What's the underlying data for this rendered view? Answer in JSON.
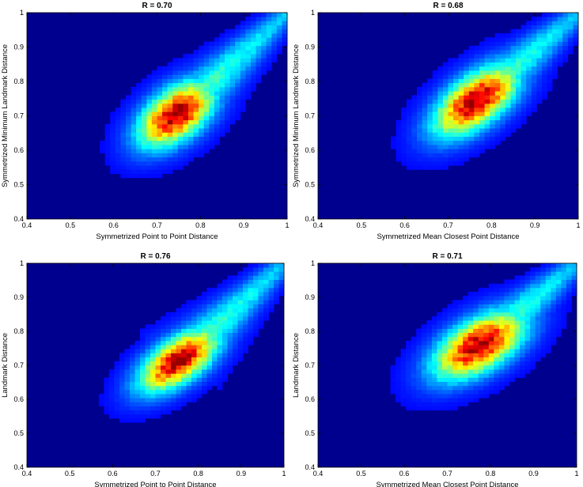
{
  "chart_data": [
    {
      "type": "heatmap",
      "title": "R = 0.70",
      "xlabel": "Symmetrized Point to Point Distance",
      "ylabel": "Symmetrized Minimum Landmark Distance",
      "xlim": [
        0.4,
        1.0
      ],
      "ylim": [
        0.4,
        1.0
      ],
      "xticks": [
        "0.4",
        "0.5",
        "0.6",
        "0.7",
        "0.8",
        "0.9",
        "1"
      ],
      "yticks": [
        "0.4",
        "0.5",
        "0.6",
        "0.7",
        "0.8",
        "0.9",
        "1"
      ],
      "colormap": "jet",
      "background_color": "#00008f",
      "density": {
        "center": [
          0.745,
          0.705
        ],
        "sigma_major": 0.075,
        "sigma_minor": 0.042,
        "angle_deg": 50,
        "ridge_to": [
          1.0,
          1.0
        ]
      }
    },
    {
      "type": "heatmap",
      "title": "R = 0.68",
      "xlabel": "Symmetrized Mean Closest Point Distance",
      "ylabel": "Symmetrized Minimum Landmark Distance",
      "xlim": [
        0.4,
        1.0
      ],
      "ylim": [
        0.4,
        1.0
      ],
      "xticks": [
        "0.4",
        "0.5",
        "0.6",
        "0.7",
        "0.8",
        "0.9",
        "1"
      ],
      "yticks": [
        "0.4",
        "0.5",
        "0.6",
        "0.7",
        "0.8",
        "0.9",
        "1"
      ],
      "colormap": "jet",
      "background_color": "#00008f",
      "density": {
        "center": [
          0.765,
          0.745
        ],
        "sigma_major": 0.085,
        "sigma_minor": 0.042,
        "angle_deg": 48,
        "ridge_to": [
          1.0,
          1.0
        ]
      }
    },
    {
      "type": "heatmap",
      "title": "R = 0.76",
      "xlabel": "Symmetrized Point to Point Distance",
      "ylabel": "Landmark Distance",
      "xlim": [
        0.4,
        1.0
      ],
      "ylim": [
        0.4,
        1.0
      ],
      "xticks": [
        "0.4",
        "0.5",
        "0.6",
        "0.7",
        "0.8",
        "0.9",
        "1"
      ],
      "yticks": [
        "0.4",
        "0.5",
        "0.6",
        "0.7",
        "0.8",
        "0.9",
        "1"
      ],
      "colormap": "jet",
      "background_color": "#00008f",
      "density": {
        "center": [
          0.755,
          0.715
        ],
        "sigma_major": 0.078,
        "sigma_minor": 0.038,
        "angle_deg": 45,
        "ridge_to": [
          1.0,
          1.0
        ]
      }
    },
    {
      "type": "heatmap",
      "title": "R = 0.71",
      "xlabel": "Symmetrized Mean Closest Point Distance",
      "ylabel": "Landmark Distance",
      "xlim": [
        0.4,
        1.0
      ],
      "ylim": [
        0.4,
        1.0
      ],
      "xticks": [
        "0.4",
        "0.5",
        "0.6",
        "0.7",
        "0.8",
        "0.9",
        "1"
      ],
      "yticks": [
        "0.4",
        "0.5",
        "0.6",
        "0.7",
        "0.8",
        "0.9",
        "1"
      ],
      "colormap": "jet",
      "background_color": "#00008f",
      "density": {
        "center": [
          0.775,
          0.76
        ],
        "sigma_major": 0.085,
        "sigma_minor": 0.045,
        "angle_deg": 42,
        "ridge_to": [
          1.0,
          1.0
        ]
      }
    }
  ]
}
